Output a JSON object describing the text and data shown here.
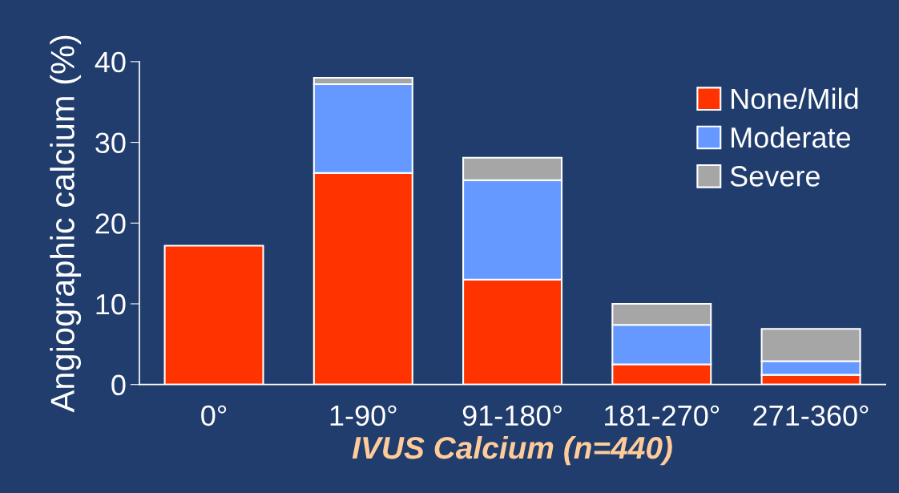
{
  "chart_data": {
    "type": "bar",
    "stacked": true,
    "xlabel": "IVUS Calcium (n=440)",
    "ylabel": "Angiographic calcium (%)",
    "categories": [
      "0°",
      "1-90°",
      "91-180°",
      "181-270°",
      "271-360°"
    ],
    "series": [
      {
        "name": "None/Mild",
        "color": "#ff3300",
        "values": [
          17.2,
          26.2,
          13.0,
          2.5,
          1.2
        ]
      },
      {
        "name": "Moderate",
        "color": "#6699ff",
        "values": [
          null,
          11.0,
          12.3,
          4.9,
          1.7
        ]
      },
      {
        "name": "Severe",
        "color": "#a6a6a6",
        "values": [
          null,
          0.8,
          2.8,
          2.6,
          4.0
        ]
      }
    ],
    "ylim": [
      0,
      40
    ],
    "yticks": [
      0,
      10,
      20,
      30,
      40
    ],
    "grid": false,
    "legend": "top right"
  }
}
